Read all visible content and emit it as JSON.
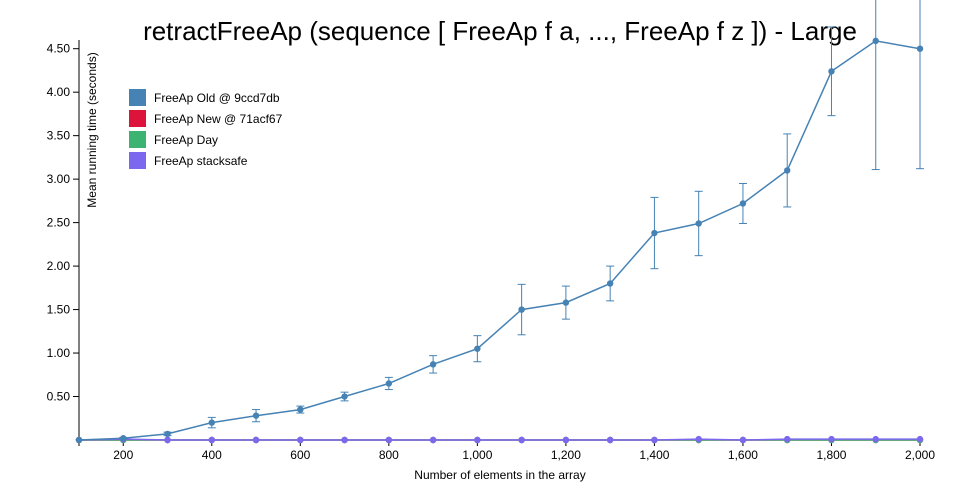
{
  "chart_data": {
    "type": "line",
    "title": "retractFreeAp (sequence [ FreeAp f a, ..., FreeAp f z ]) - Large",
    "xlabel": "Number of elements in the array",
    "ylabel": "Mean running time (seconds)",
    "xlim": [
      100,
      2000
    ],
    "ylim": [
      0,
      4.6
    ],
    "x_ticks": [
      200,
      400,
      600,
      800,
      1000,
      1200,
      1400,
      1600,
      1800,
      2000
    ],
    "x_tick_labels": [
      "200",
      "400",
      "600",
      "800",
      "1,000",
      "1,200",
      "1,400",
      "1,600",
      "1,800",
      "2,000"
    ],
    "y_ticks": [
      0.5,
      1.0,
      1.5,
      2.0,
      2.5,
      3.0,
      3.5,
      4.0,
      4.5
    ],
    "y_tick_labels": [
      "0.50",
      "1.00",
      "1.50",
      "2.00",
      "2.50",
      "3.00",
      "3.50",
      "4.00",
      "4.50"
    ],
    "legend_position": "top-left",
    "x": [
      100,
      200,
      300,
      400,
      500,
      600,
      700,
      800,
      900,
      1000,
      1100,
      1200,
      1300,
      1400,
      1500,
      1600,
      1700,
      1800,
      1900,
      2000
    ],
    "series": [
      {
        "name": "FreeAp Old @ 9ccd7db",
        "color": "#4682b4",
        "values": [
          0.0,
          0.02,
          0.07,
          0.2,
          0.28,
          0.35,
          0.5,
          0.65,
          0.87,
          1.05,
          1.5,
          1.58,
          1.8,
          2.38,
          2.49,
          2.72,
          3.1,
          4.24,
          4.59,
          4.5
        ],
        "error": [
          0.0,
          0.01,
          0.02,
          0.06,
          0.07,
          0.04,
          0.05,
          0.07,
          0.1,
          0.15,
          0.29,
          0.19,
          0.2,
          0.41,
          0.37,
          0.23,
          0.42,
          0.51,
          1.48,
          1.38
        ]
      },
      {
        "name": "FreeAp New @ 71acf67",
        "color": "#dc143c",
        "values": [
          0.0,
          0.0,
          0.0,
          0.0,
          0.0,
          0.0,
          0.0,
          0.0,
          0.0,
          0.0,
          0.0,
          0.0,
          0.0,
          0.0,
          0.0,
          0.0,
          0.0,
          0.0,
          0.0,
          0.0
        ]
      },
      {
        "name": "FreeAp Day",
        "color": "#3cb371",
        "values": [
          0.0,
          0.0,
          0.0,
          0.0,
          0.0,
          0.0,
          0.0,
          0.0,
          0.0,
          0.0,
          0.0,
          0.0,
          0.0,
          0.0,
          0.0,
          0.0,
          0.0,
          0.0,
          0.0,
          0.0
        ]
      },
      {
        "name": "FreeAp stacksafe",
        "color": "#7b68ee",
        "values": [
          0.0,
          0.01,
          0.0,
          0.0,
          0.0,
          0.0,
          0.0,
          0.0,
          0.0,
          0.0,
          0.0,
          0.0,
          0.0,
          0.0,
          0.01,
          0.0,
          0.01,
          0.01,
          0.01,
          0.01
        ]
      }
    ]
  }
}
